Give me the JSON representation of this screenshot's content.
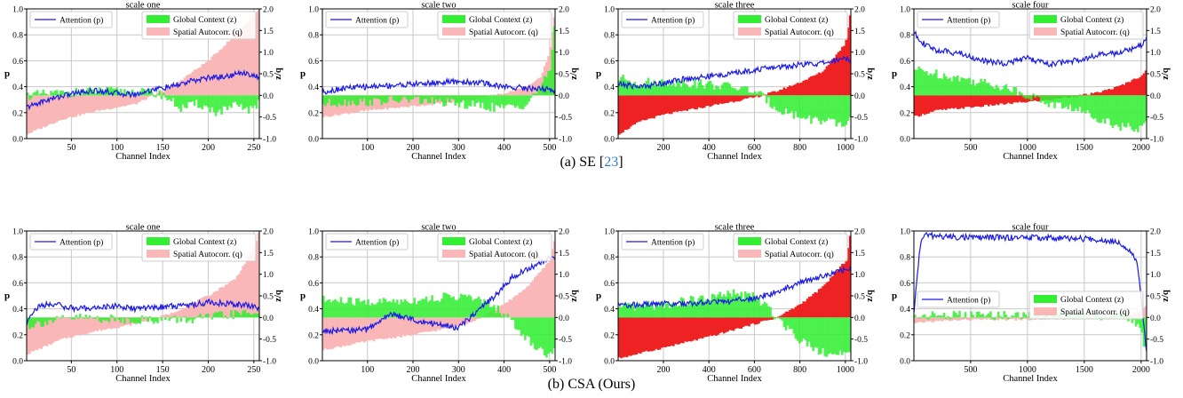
{
  "captions": {
    "a": {
      "prefix": "(a) SE [",
      "cite": "23",
      "suffix": "]"
    },
    "b": {
      "text": "(b) CSA (Ours)"
    }
  },
  "colors": {
    "attention": "#1a1ae6",
    "green": "#33ee33",
    "red_light": "#f9b7b7",
    "red_dark": "#ee2222",
    "olive": "#8a9a20",
    "grid": "#c8c8c8"
  },
  "axis_labels": {
    "left": "p",
    "right": "z/q",
    "x": "Channel Index"
  },
  "legend_labels": {
    "attention": "Attention (p)",
    "global": "Global Context (z)",
    "spatial": "Spatial Autocorr. (q)"
  },
  "chart_data": [
    {
      "type": "line",
      "row": "SE",
      "title": "scale one",
      "xlabel": "Channel Index",
      "ylabel": "p",
      "y2label": "z/q",
      "xlim": [
        1,
        256
      ],
      "xticks": [
        50,
        100,
        150,
        200,
        250
      ],
      "ylim": [
        0,
        1.0
      ],
      "y2lim": [
        -1.0,
        2.0
      ],
      "legend": "top",
      "q_shade": "light",
      "series": [
        {
          "name": "Attention (p)",
          "axis": "left",
          "x": [
            1,
            20,
            40,
            60,
            80,
            100,
            120,
            140,
            160,
            180,
            200,
            220,
            240,
            256
          ],
          "y": [
            0.24,
            0.29,
            0.33,
            0.36,
            0.37,
            0.35,
            0.34,
            0.38,
            0.4,
            0.44,
            0.47,
            0.48,
            0.51,
            0.47
          ]
        },
        {
          "name": "Global Context (z)",
          "axis": "right",
          "x": [
            1,
            40,
            80,
            120,
            150,
            170,
            190,
            210,
            230,
            250,
            256
          ],
          "y": [
            0.0,
            0.05,
            0.1,
            0.08,
            0.02,
            -0.3,
            -0.2,
            -0.4,
            -0.25,
            -0.35,
            -0.1
          ]
        },
        {
          "name": "Spatial Autocorr. (q)",
          "axis": "right",
          "x": [
            1,
            40,
            80,
            120,
            160,
            200,
            230,
            256
          ],
          "y": [
            -0.9,
            -0.55,
            -0.35,
            -0.2,
            0.2,
            0.8,
            1.4,
            2.0
          ]
        }
      ]
    },
    {
      "type": "line",
      "row": "SE",
      "title": "scale two",
      "xlabel": "Channel Index",
      "ylabel": "p",
      "y2label": "z/q",
      "xlim": [
        1,
        512
      ],
      "xticks": [
        100,
        200,
        300,
        400,
        500
      ],
      "ylim": [
        0,
        1.0
      ],
      "y2lim": [
        -1.0,
        2.0
      ],
      "legend": "top",
      "q_shade": "light",
      "series": [
        {
          "name": "Attention (p)",
          "axis": "left",
          "x": [
            1,
            50,
            100,
            150,
            200,
            250,
            300,
            350,
            400,
            450,
            500,
            512
          ],
          "y": [
            0.36,
            0.39,
            0.4,
            0.41,
            0.42,
            0.43,
            0.44,
            0.43,
            0.4,
            0.39,
            0.38,
            0.36
          ]
        },
        {
          "name": "Global Context (z)",
          "axis": "right",
          "x": [
            1,
            50,
            100,
            200,
            300,
            400,
            450,
            500,
            512
          ],
          "y": [
            -0.2,
            -0.15,
            -0.15,
            -0.1,
            -0.2,
            -0.3,
            -0.2,
            0.5,
            1.8
          ]
        },
        {
          "name": "Spatial Autocorr. (q)",
          "axis": "right",
          "x": [
            1,
            100,
            200,
            300,
            400,
            450,
            480,
            500,
            512
          ],
          "y": [
            -0.5,
            -0.35,
            -0.25,
            -0.15,
            0.05,
            0.2,
            0.4,
            1.0,
            2.0
          ]
        }
      ]
    },
    {
      "type": "line",
      "row": "SE",
      "title": "scale three",
      "xlabel": "Channel Index",
      "ylabel": "p",
      "y2label": "z/q",
      "xlim": [
        1,
        1024
      ],
      "xticks": [
        200,
        400,
        600,
        800,
        1000
      ],
      "ylim": [
        0,
        1.0
      ],
      "y2lim": [
        -1.0,
        2.0
      ],
      "legend": "top",
      "q_shade": "dark",
      "series": [
        {
          "name": "Attention (p)",
          "axis": "left",
          "x": [
            1,
            100,
            200,
            300,
            400,
            500,
            600,
            700,
            800,
            900,
            1000,
            1024
          ],
          "y": [
            0.42,
            0.4,
            0.43,
            0.46,
            0.48,
            0.5,
            0.53,
            0.55,
            0.57,
            0.58,
            0.62,
            0.61
          ]
        },
        {
          "name": "Global Context (z)",
          "axis": "right",
          "x": [
            1,
            100,
            200,
            300,
            400,
            500,
            600,
            700,
            800,
            900,
            1000,
            1024
          ],
          "y": [
            0.4,
            0.3,
            0.3,
            0.3,
            0.25,
            0.2,
            0.1,
            -0.3,
            -0.5,
            -0.6,
            -0.7,
            -0.5
          ]
        },
        {
          "name": "Spatial Autocorr. (q)",
          "axis": "right",
          "x": [
            1,
            100,
            200,
            300,
            400,
            500,
            600,
            700,
            800,
            900,
            1000,
            1024
          ],
          "y": [
            -0.9,
            -0.6,
            -0.45,
            -0.35,
            -0.25,
            -0.15,
            -0.05,
            0.1,
            0.3,
            0.55,
            1.2,
            2.0
          ]
        }
      ]
    },
    {
      "type": "line",
      "row": "SE",
      "title": "scale four",
      "xlabel": "Channel Index",
      "ylabel": "p",
      "y2label": "z/q",
      "xlim": [
        1,
        2048
      ],
      "xticks": [
        500,
        1000,
        1500,
        2000
      ],
      "ylim": [
        0,
        1.0
      ],
      "y2lim": [
        -1.0,
        2.0
      ],
      "legend": "top",
      "q_shade": "dark",
      "series": [
        {
          "name": "Attention (p)",
          "axis": "left",
          "x": [
            1,
            100,
            200,
            400,
            600,
            800,
            1000,
            1200,
            1400,
            1600,
            1800,
            2000,
            2048
          ],
          "y": [
            0.82,
            0.72,
            0.68,
            0.66,
            0.6,
            0.58,
            0.62,
            0.57,
            0.6,
            0.64,
            0.66,
            0.72,
            0.78
          ]
        },
        {
          "name": "Global Context (z)",
          "axis": "right",
          "x": [
            1,
            200,
            400,
            600,
            800,
            1000,
            1200,
            1400,
            1600,
            1800,
            2000,
            2048
          ],
          "y": [
            0.6,
            0.5,
            0.4,
            0.3,
            0.2,
            0.0,
            -0.2,
            -0.3,
            -0.5,
            -0.7,
            -0.8,
            -0.6
          ]
        },
        {
          "name": "Spatial Autocorr. (q)",
          "axis": "right",
          "x": [
            1,
            200,
            400,
            800,
            1200,
            1600,
            1800,
            2000,
            2048
          ],
          "y": [
            -0.5,
            -0.35,
            -0.3,
            -0.2,
            -0.1,
            0.05,
            0.2,
            0.45,
            0.6
          ]
        }
      ]
    },
    {
      "type": "line",
      "row": "CSA",
      "title": "scale one",
      "xlabel": "Channel Index",
      "ylabel": "p",
      "y2label": "z/q",
      "xlim": [
        1,
        256
      ],
      "xticks": [
        50,
        100,
        150,
        200,
        250
      ],
      "ylim": [
        0,
        1.0
      ],
      "y2lim": [
        -1.0,
        2.0
      ],
      "legend": "top",
      "q_shade": "light",
      "series": [
        {
          "name": "Attention (p)",
          "axis": "left",
          "x": [
            1,
            5,
            15,
            30,
            45,
            60,
            80,
            100,
            120,
            140,
            160,
            180,
            200,
            220,
            240,
            256
          ],
          "y": [
            0.28,
            0.36,
            0.42,
            0.44,
            0.41,
            0.4,
            0.41,
            0.42,
            0.4,
            0.41,
            0.42,
            0.43,
            0.45,
            0.44,
            0.43,
            0.4
          ]
        },
        {
          "name": "Global Context (z)",
          "axis": "right",
          "x": [
            1,
            20,
            40,
            60,
            100,
            140,
            180,
            200,
            240,
            256
          ],
          "y": [
            -0.2,
            -0.1,
            -0.05,
            0.0,
            -0.05,
            -0.05,
            -0.05,
            0.0,
            0.1,
            0.1
          ]
        },
        {
          "name": "Spatial Autocorr. (q)",
          "axis": "right",
          "x": [
            1,
            40,
            80,
            120,
            160,
            200,
            230,
            250,
            256
          ],
          "y": [
            -0.85,
            -0.5,
            -0.3,
            -0.15,
            0.1,
            0.5,
            0.9,
            1.6,
            2.0
          ]
        }
      ]
    },
    {
      "type": "line",
      "row": "CSA",
      "title": "scale two",
      "xlabel": "Channel Index",
      "ylabel": "p",
      "y2label": "z/q",
      "xlim": [
        1,
        512
      ],
      "xticks": [
        100,
        200,
        300,
        400,
        500
      ],
      "ylim": [
        0,
        1.0
      ],
      "y2lim": [
        -1.0,
        2.0
      ],
      "legend": "top",
      "q_shade": "light",
      "series": [
        {
          "name": "Attention (p)",
          "axis": "left",
          "x": [
            1,
            50,
            100,
            150,
            200,
            220,
            260,
            300,
            340,
            380,
            420,
            460,
            500,
            512
          ],
          "y": [
            0.23,
            0.23,
            0.24,
            0.36,
            0.32,
            0.3,
            0.28,
            0.25,
            0.38,
            0.5,
            0.65,
            0.72,
            0.79,
            0.8
          ]
        },
        {
          "name": "Global Context (z)",
          "axis": "right",
          "x": [
            1,
            100,
            200,
            300,
            350,
            400,
            450,
            500,
            512
          ],
          "y": [
            0.4,
            0.35,
            0.4,
            0.5,
            0.4,
            0.1,
            -0.5,
            -0.9,
            -0.7
          ]
        },
        {
          "name": "Spatial Autocorr. (q)",
          "axis": "right",
          "x": [
            1,
            100,
            200,
            300,
            350,
            400,
            450,
            500,
            512
          ],
          "y": [
            -0.75,
            -0.55,
            -0.4,
            -0.2,
            0.0,
            0.3,
            0.7,
            1.3,
            1.9
          ]
        }
      ]
    },
    {
      "type": "line",
      "row": "CSA",
      "title": "scale three",
      "xlabel": "Channel Index",
      "ylabel": "p",
      "y2label": "z/q",
      "xlim": [
        1,
        1024
      ],
      "xticks": [
        200,
        400,
        600,
        800,
        1000
      ],
      "ylim": [
        0,
        1.0
      ],
      "y2lim": [
        -1.0,
        2.0
      ],
      "legend": "top",
      "q_shade": "dark",
      "series": [
        {
          "name": "Attention (p)",
          "axis": "left",
          "x": [
            1,
            100,
            200,
            300,
            400,
            500,
            600,
            700,
            800,
            900,
            1000,
            1024
          ],
          "y": [
            0.43,
            0.43,
            0.44,
            0.44,
            0.45,
            0.46,
            0.48,
            0.53,
            0.6,
            0.65,
            0.7,
            0.71
          ]
        },
        {
          "name": "Global Context (z)",
          "axis": "right",
          "x": [
            1,
            200,
            400,
            500,
            600,
            700,
            800,
            900,
            1000,
            1024
          ],
          "y": [
            0.2,
            0.3,
            0.45,
            0.55,
            0.5,
            0.0,
            -0.5,
            -0.8,
            -0.9,
            -0.7
          ]
        },
        {
          "name": "Spatial Autocorr. (q)",
          "axis": "right",
          "x": [
            1,
            200,
            400,
            600,
            700,
            800,
            900,
            1000,
            1024
          ],
          "y": [
            -0.95,
            -0.7,
            -0.45,
            -0.15,
            0.0,
            0.3,
            0.7,
            1.3,
            2.0
          ]
        }
      ]
    },
    {
      "type": "line",
      "row": "CSA",
      "title": "scale four",
      "xlabel": "Channel Index",
      "ylabel": "p",
      "y2label": "z/q",
      "xlim": [
        1,
        2048
      ],
      "xticks": [
        500,
        1000,
        1500,
        2000
      ],
      "ylim": [
        0,
        1.0
      ],
      "y2lim": [
        -1.0,
        2.0
      ],
      "legend": "middle",
      "q_shade": "light",
      "series": [
        {
          "name": "Attention (p)",
          "axis": "left",
          "x": [
            1,
            30,
            60,
            100,
            200,
            500,
            1000,
            1500,
            1800,
            1900,
            1960,
            2000,
            2030,
            2048
          ],
          "y": [
            0.36,
            0.65,
            0.92,
            0.97,
            0.96,
            0.95,
            0.95,
            0.94,
            0.92,
            0.85,
            0.78,
            0.5,
            0.2,
            0.08
          ]
        },
        {
          "name": "Global Context (z)",
          "axis": "right",
          "x": [
            1,
            100,
            500,
            1000,
            1500,
            1900,
            2000,
            2030,
            2048
          ],
          "y": [
            0.0,
            0.05,
            0.05,
            0.05,
            0.05,
            0.0,
            -0.3,
            -0.9,
            -0.6
          ]
        },
        {
          "name": "Spatial Autocorr. (q)",
          "axis": "right",
          "x": [
            1,
            100,
            500,
            1000,
            1500,
            1800,
            1900,
            2000,
            2048
          ],
          "y": [
            -0.15,
            -0.1,
            -0.05,
            -0.05,
            -0.02,
            0.0,
            0.05,
            0.15,
            0.3
          ]
        }
      ]
    }
  ]
}
